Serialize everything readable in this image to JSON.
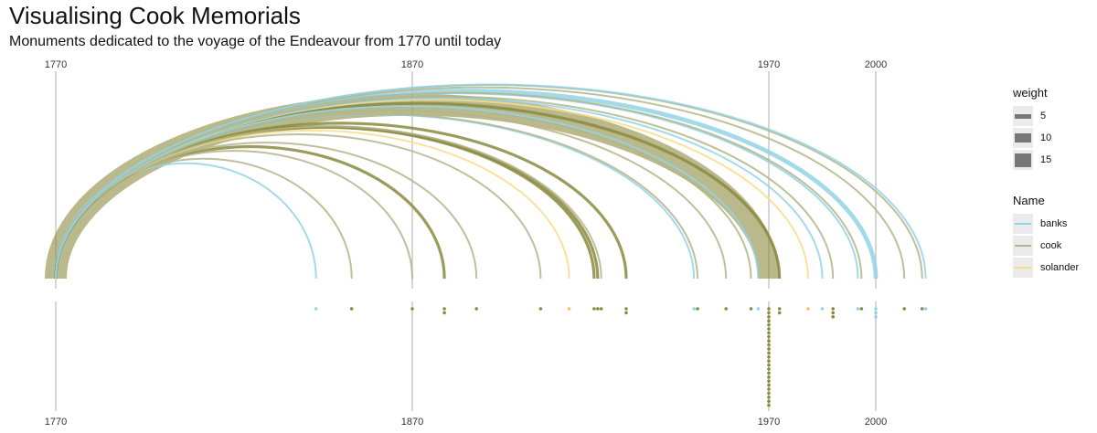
{
  "title": "Visualising Cook Memorials",
  "subtitle": "Monuments dedicated to the voyage of the Endeavour from 1770 until today",
  "legend": {
    "weight": {
      "title": "weight",
      "entries": [
        "5",
        "10",
        "15"
      ],
      "values": [
        5,
        10,
        15
      ]
    },
    "name": {
      "title": "Name",
      "entries": [
        "banks",
        "cook",
        "solander"
      ]
    }
  },
  "colors": {
    "banks": "#93d3e6",
    "cook": "#8a8a3f",
    "cook_light": "#b3b58a",
    "solander": "#f7dd8c",
    "axis": "#bbbbbb"
  },
  "chart_data": {
    "type": "arc",
    "x_ticks": [
      1770,
      1870,
      1970,
      2000
    ],
    "x_tick_labels": [
      "1770",
      "1870",
      "1970",
      "2000"
    ],
    "xlim": [
      1770,
      2015
    ],
    "arcs": [
      {
        "name": "banks",
        "start": 1770,
        "end": 1843,
        "weight": 1
      },
      {
        "name": "cook",
        "start": 1770,
        "end": 1853,
        "weight": 1
      },
      {
        "name": "cook",
        "start": 1770,
        "end": 1870,
        "weight": 1
      },
      {
        "name": "cook",
        "start": 1770,
        "end": 1879,
        "weight": 2
      },
      {
        "name": "cook",
        "start": 1770,
        "end": 1888,
        "weight": 1
      },
      {
        "name": "cook",
        "start": 1770,
        "end": 1906,
        "weight": 1
      },
      {
        "name": "solander",
        "start": 1770,
        "end": 1914,
        "weight": 1
      },
      {
        "name": "cook",
        "start": 1770,
        "end": 1921,
        "weight": 2
      },
      {
        "name": "cook",
        "start": 1770,
        "end": 1922,
        "weight": 2
      },
      {
        "name": "cook",
        "start": 1770,
        "end": 1923,
        "weight": 1
      },
      {
        "name": "cook",
        "start": 1770,
        "end": 1930,
        "weight": 2
      },
      {
        "name": "banks",
        "start": 1770,
        "end": 1949,
        "weight": 1
      },
      {
        "name": "cook",
        "start": 1770,
        "end": 1950,
        "weight": 1
      },
      {
        "name": "cook",
        "start": 1770,
        "end": 1958,
        "weight": 1
      },
      {
        "name": "cook",
        "start": 1770,
        "end": 1965,
        "weight": 1
      },
      {
        "name": "banks",
        "start": 1770,
        "end": 1967,
        "weight": 1
      },
      {
        "name": "cook",
        "start": 1770,
        "end": 1970,
        "weight": 15
      },
      {
        "name": "cook",
        "start": 1770,
        "end": 1973,
        "weight": 2
      },
      {
        "name": "solander",
        "start": 1770,
        "end": 1981,
        "weight": 1
      },
      {
        "name": "banks",
        "start": 1770,
        "end": 1985,
        "weight": 1
      },
      {
        "name": "cook",
        "start": 1770,
        "end": 1988,
        "weight": 1
      },
      {
        "name": "banks",
        "start": 1770,
        "end": 1995,
        "weight": 1
      },
      {
        "name": "cook",
        "start": 1770,
        "end": 1996,
        "weight": 1
      },
      {
        "name": "banks",
        "start": 2000,
        "end": 2000,
        "weight": 0,
        "skip": true
      },
      {
        "name": "banks",
        "start": 1770,
        "end": 2000,
        "weight": 3
      },
      {
        "name": "cook",
        "start": 1770,
        "end": 2008,
        "weight": 1
      },
      {
        "name": "cook",
        "start": 1770,
        "end": 2013,
        "weight": 1
      },
      {
        "name": "banks",
        "start": 1770,
        "end": 2014,
        "weight": 1
      }
    ],
    "points": [
      {
        "name": "banks",
        "year": 1843,
        "count": 1
      },
      {
        "name": "cook",
        "year": 1853,
        "count": 1
      },
      {
        "name": "cook",
        "year": 1870,
        "count": 1
      },
      {
        "name": "cook",
        "year": 1879,
        "count": 2
      },
      {
        "name": "cook",
        "year": 1888,
        "count": 1
      },
      {
        "name": "cook",
        "year": 1906,
        "count": 1
      },
      {
        "name": "solander",
        "year": 1914,
        "count": 1
      },
      {
        "name": "cook",
        "year": 1921,
        "count": 1
      },
      {
        "name": "cook",
        "year": 1922,
        "count": 1
      },
      {
        "name": "cook",
        "year": 1923,
        "count": 1
      },
      {
        "name": "cook",
        "year": 1930,
        "count": 2
      },
      {
        "name": "banks",
        "year": 1949,
        "count": 1
      },
      {
        "name": "cook",
        "year": 1950,
        "count": 1
      },
      {
        "name": "cook",
        "year": 1958,
        "count": 1
      },
      {
        "name": "cook",
        "year": 1965,
        "count": 1
      },
      {
        "name": "banks",
        "year": 1967,
        "count": 1
      },
      {
        "name": "cook",
        "year": 1970,
        "count": 25
      },
      {
        "name": "cook",
        "year": 1973,
        "count": 2
      },
      {
        "name": "solander",
        "year": 1981,
        "count": 1
      },
      {
        "name": "banks",
        "year": 1985,
        "count": 1
      },
      {
        "name": "cook",
        "year": 1988,
        "count": 3
      },
      {
        "name": "banks",
        "year": 1995,
        "count": 1
      },
      {
        "name": "cook",
        "year": 1996,
        "count": 1
      },
      {
        "name": "banks",
        "year": 2000,
        "count": 3
      },
      {
        "name": "cook",
        "year": 2008,
        "count": 1
      },
      {
        "name": "cook",
        "year": 2013,
        "count": 1
      },
      {
        "name": "banks",
        "year": 2014,
        "count": 1
      }
    ]
  }
}
